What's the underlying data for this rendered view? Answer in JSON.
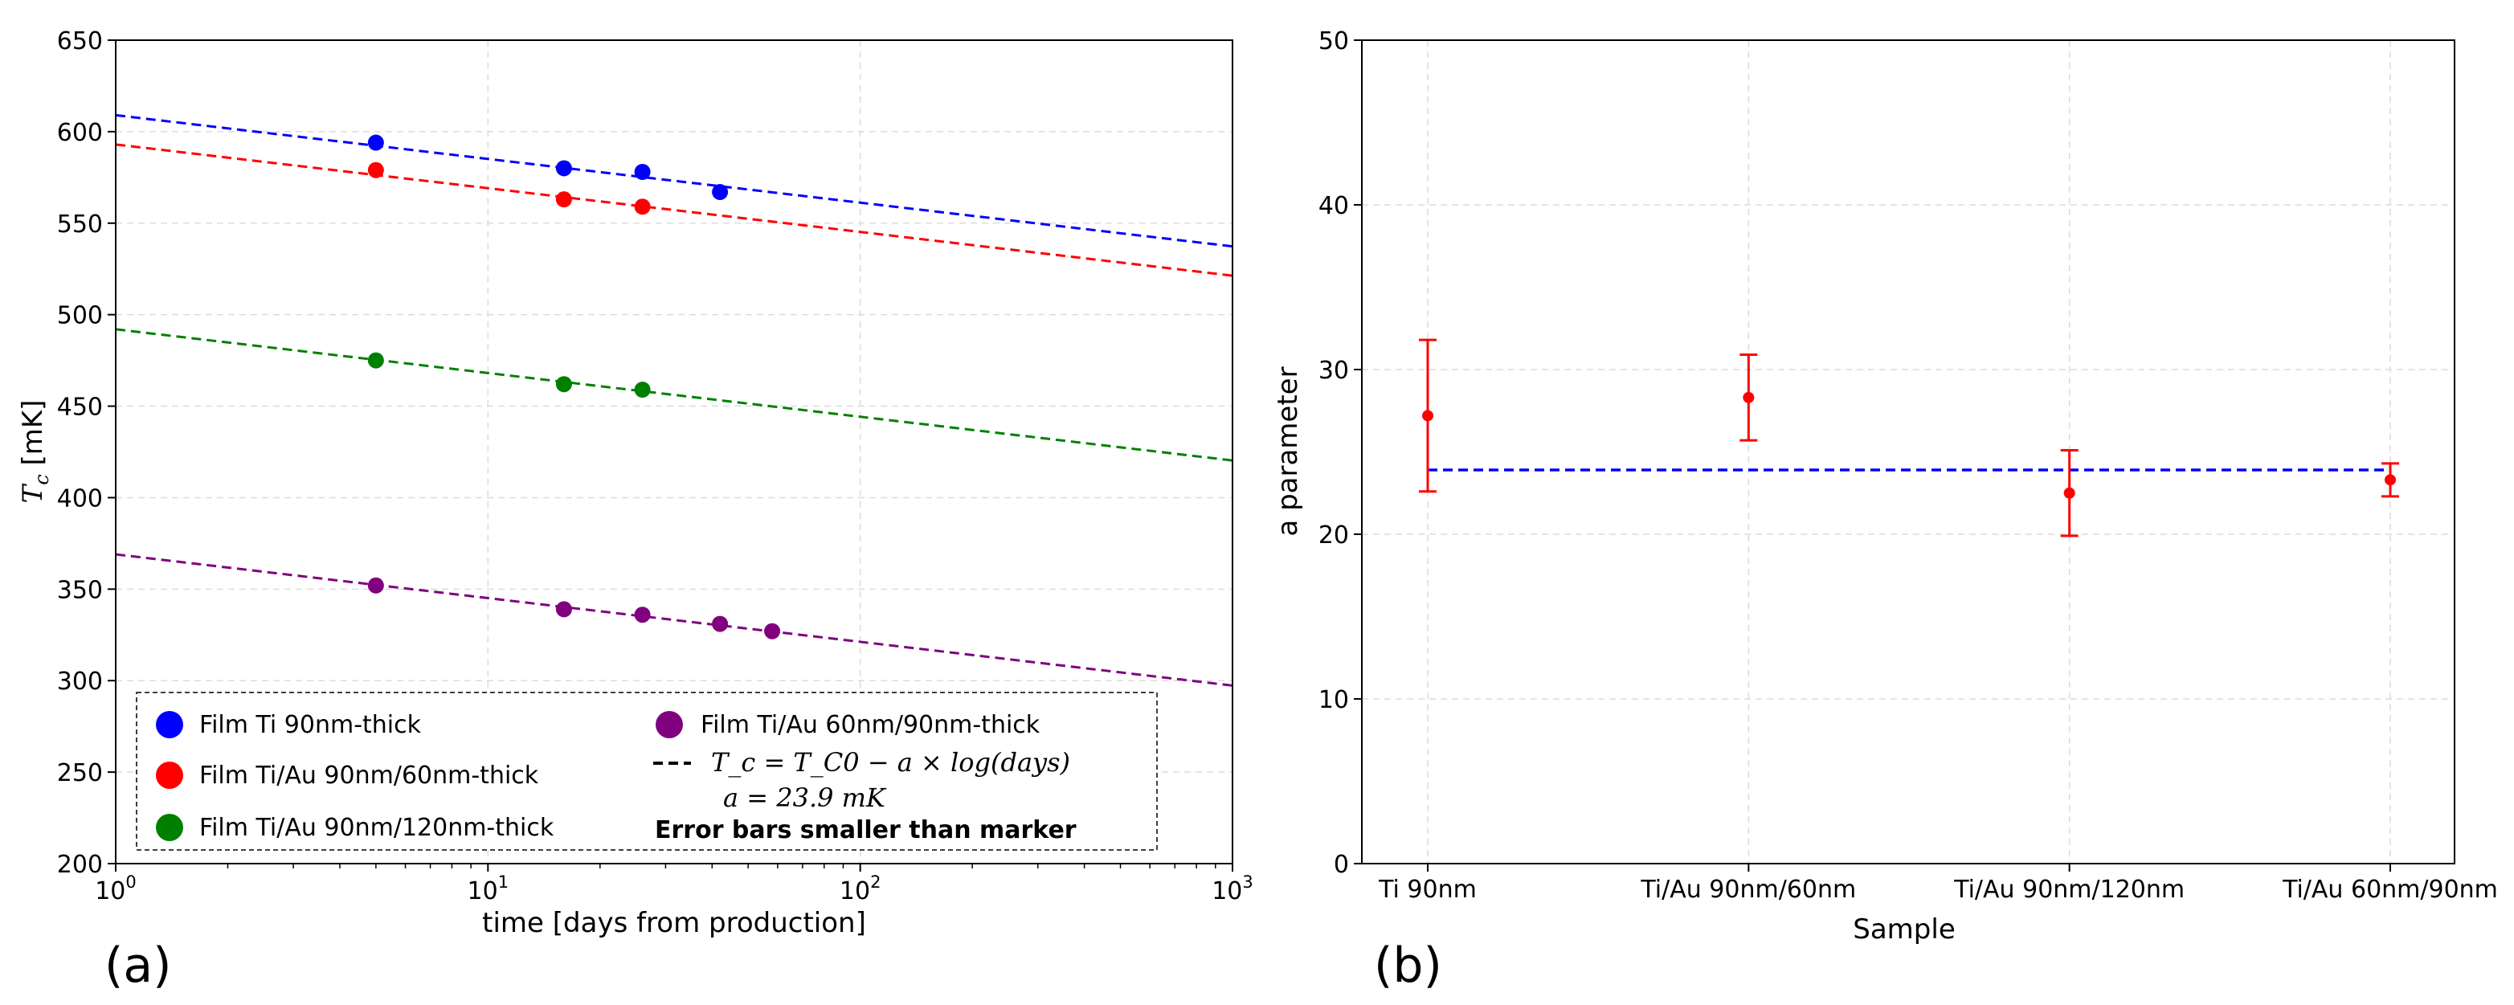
{
  "chart_data": [
    {
      "type": "scatter",
      "panel_label": "(a)",
      "xlabel": "time [days from production]",
      "ylabel_main": "T",
      "ylabel_sub": "c",
      "ylabel_rest": " [mK]",
      "xscale": "log",
      "xlim": [
        1,
        1000
      ],
      "ylim": [
        200,
        650
      ],
      "yticks": [
        "200",
        "250",
        "300",
        "350",
        "400",
        "450",
        "500",
        "550",
        "600",
        "650"
      ],
      "xticks": [
        {
          "base": "10",
          "exp": "0"
        },
        {
          "base": "10",
          "exp": "1"
        },
        {
          "base": "10",
          "exp": "2"
        },
        {
          "base": "10",
          "exp": "3"
        }
      ],
      "grid": true,
      "series": [
        {
          "name": "Film Ti 90nm-thick",
          "color": "#0000ff",
          "x": [
            5,
            16,
            26,
            42
          ],
          "y": [
            594,
            580,
            578,
            567
          ],
          "fit": {
            "tc0": 609,
            "a": 23.9
          }
        },
        {
          "name": "Film Ti/Au 90nm/60nm-thick",
          "color": "#ff0000",
          "x": [
            5,
            16,
            26
          ],
          "y": [
            579,
            563,
            559
          ],
          "fit": {
            "tc0": 593,
            "a": 23.9
          }
        },
        {
          "name": "Film Ti/Au 90nm/120nm-thick",
          "color": "#008000",
          "x": [
            5,
            16,
            26
          ],
          "y": [
            475,
            462,
            459
          ],
          "fit": {
            "tc0": 492,
            "a": 23.9
          }
        },
        {
          "name": "Film Ti/Au 60nm/90nm-thick",
          "color": "#800080",
          "x": [
            5,
            16,
            26,
            42,
            58
          ],
          "y": [
            352,
            339,
            336,
            331,
            327
          ],
          "fit": {
            "tc0": 369,
            "a": 23.9
          }
        }
      ],
      "legend": {
        "position": "lower-center",
        "fit_formula": "T_c = T_C0 − a × log(days)",
        "fit_value": "a = 23.9 mK",
        "note": "Error bars smaller than marker"
      }
    },
    {
      "type": "scatter",
      "panel_label": "(b)",
      "xlabel": "Sample",
      "ylabel": "a parameter",
      "ylim": [
        0,
        50
      ],
      "yticks": [
        "0",
        "10",
        "20",
        "30",
        "40",
        "50"
      ],
      "categories": [
        "Ti 90nm",
        "Ti/Au 90nm/60nm",
        "Ti/Au 90nm/120nm",
        "Ti/Au 60nm/90nm"
      ],
      "values": [
        27.2,
        28.3,
        22.5,
        23.3
      ],
      "errors": [
        4.6,
        2.6,
        2.6,
        1.0
      ],
      "point_color": "#ff0000",
      "reference_line": {
        "value": 23.9,
        "color": "#0000ff",
        "style": "dashed"
      },
      "grid": true
    }
  ]
}
